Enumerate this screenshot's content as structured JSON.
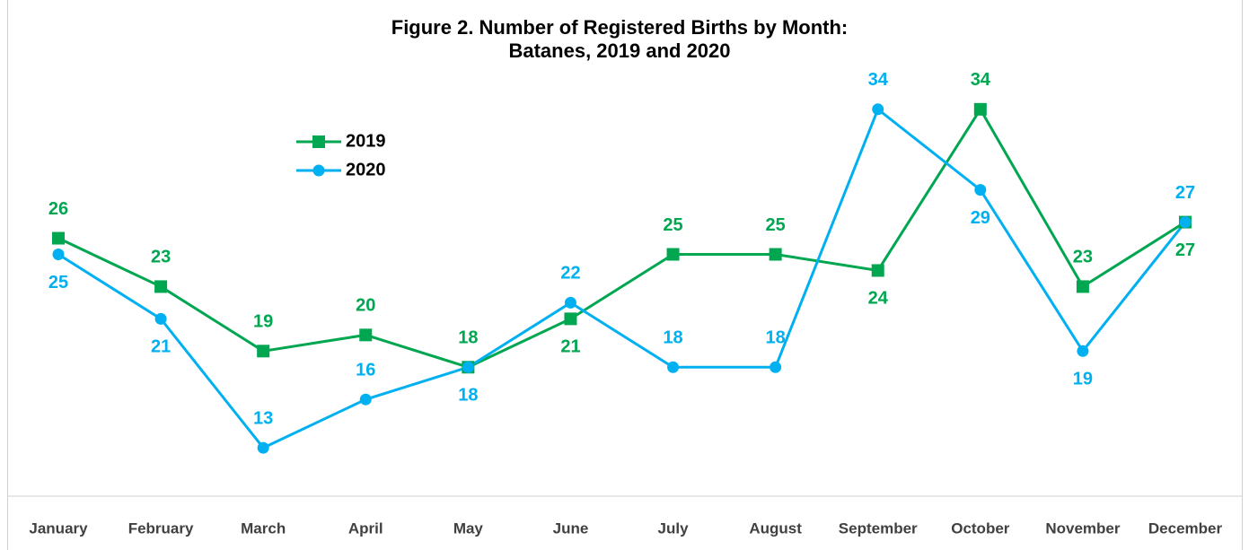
{
  "chart_data": {
    "type": "line",
    "title": [
      "Figure 2. Number of Registered Births by Month:",
      "Batanes, 2019 and 2020"
    ],
    "categories": [
      "January",
      "February",
      "March",
      "April",
      "May",
      "June",
      "July",
      "August",
      "September",
      "October",
      "November",
      "December"
    ],
    "series": [
      {
        "name": "2019",
        "color": "#00a650",
        "marker": "square",
        "values": [
          26,
          23,
          19,
          20,
          18,
          21,
          25,
          25,
          24,
          34,
          23,
          27
        ]
      },
      {
        "name": "2020",
        "color": "#00b0f0",
        "marker": "circle",
        "values": [
          25,
          21,
          13,
          16,
          18,
          22,
          18,
          18,
          34,
          29,
          19,
          27
        ]
      }
    ],
    "ylim": [
      10,
      40
    ],
    "grid": false,
    "legend": "upper left"
  }
}
